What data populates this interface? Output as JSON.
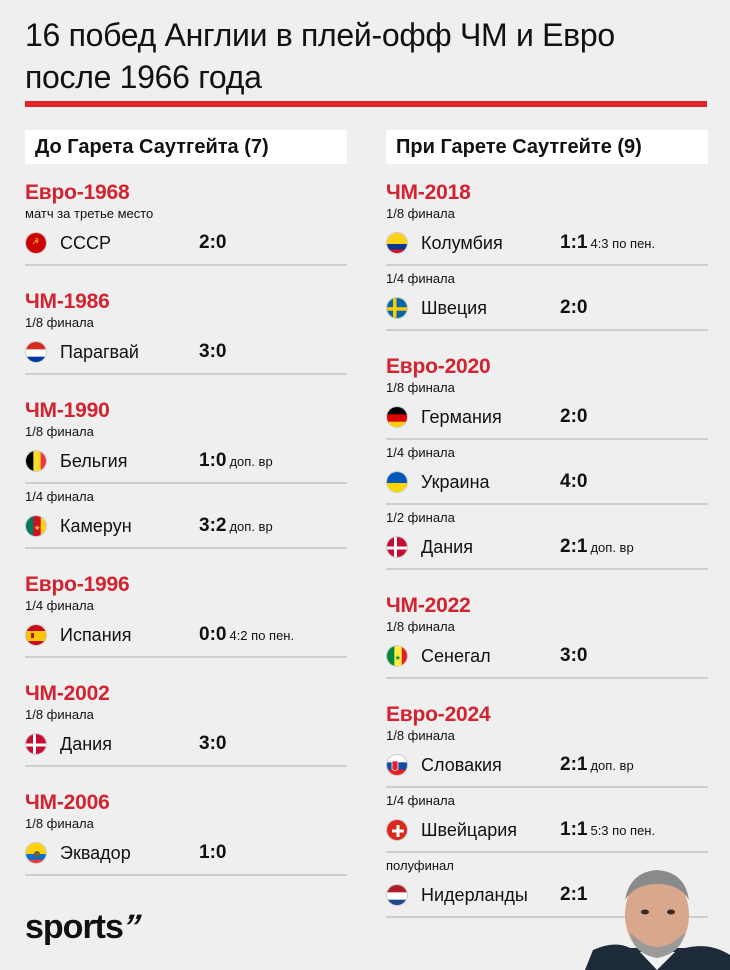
{
  "header": {
    "title_line1": "16 побед Англии в плей-офф ЧМ и Евро",
    "title_line2": "после 1966 года"
  },
  "left": {
    "heading": "До Гарета Саутгейта (7)",
    "tournaments": [
      {
        "name": "Евро-1968",
        "matches": [
          {
            "stage": "матч за третье место",
            "team": "СССР",
            "score": "2:0",
            "note": "",
            "flag": "ussr"
          }
        ]
      },
      {
        "name": "ЧМ-1986",
        "matches": [
          {
            "stage": "1/8 финала",
            "team": "Парагвай",
            "score": "3:0",
            "note": "",
            "flag": "paraguay"
          }
        ]
      },
      {
        "name": "ЧМ-1990",
        "matches": [
          {
            "stage": "1/8 финала",
            "team": "Бельгия",
            "score": "1:0",
            "note": "доп. вр",
            "flag": "belgium"
          },
          {
            "stage": "1/4 финала",
            "team": "Камерун",
            "score": "3:2",
            "note": "доп. вр",
            "flag": "cameroon"
          }
        ]
      },
      {
        "name": "Евро-1996",
        "matches": [
          {
            "stage": "1/4 финала",
            "team": "Испания",
            "score": "0:0",
            "note": "4:2 по пен.",
            "flag": "spain"
          }
        ]
      },
      {
        "name": "ЧМ-2002",
        "matches": [
          {
            "stage": "1/8 финала",
            "team": "Дания",
            "score": "3:0",
            "note": "",
            "flag": "denmark"
          }
        ]
      },
      {
        "name": "ЧМ-2006",
        "matches": [
          {
            "stage": "1/8 финала",
            "team": "Эквадор",
            "score": "1:0",
            "note": "",
            "flag": "ecuador"
          }
        ]
      }
    ]
  },
  "right": {
    "heading": "При Гарете Саутгейте (9)",
    "tournaments": [
      {
        "name": "ЧМ-2018",
        "matches": [
          {
            "stage": "1/8 финала",
            "team": "Колумбия",
            "score": "1:1",
            "note": "4:3 по пен.",
            "flag": "colombia"
          },
          {
            "stage": "1/4 финала",
            "team": "Швеция",
            "score": "2:0",
            "note": "",
            "flag": "sweden"
          }
        ]
      },
      {
        "name": "Евро-2020",
        "matches": [
          {
            "stage": "1/8 финала",
            "team": "Германия",
            "score": "2:0",
            "note": "",
            "flag": "germany"
          },
          {
            "stage": "1/4 финала",
            "team": "Украина",
            "score": "4:0",
            "note": "",
            "flag": "ukraine"
          },
          {
            "stage": "1/2 финала",
            "team": "Дания",
            "score": "2:1",
            "note": "доп. вр",
            "flag": "denmark"
          }
        ]
      },
      {
        "name": "ЧМ-2022",
        "matches": [
          {
            "stage": "1/8 финала",
            "team": "Сенегал",
            "score": "3:0",
            "note": "",
            "flag": "senegal"
          }
        ]
      },
      {
        "name": "Евро-2024",
        "matches": [
          {
            "stage": "1/8 финала",
            "team": "Словакия",
            "score": "2:1",
            "note": "доп. вр",
            "flag": "slovakia"
          },
          {
            "stage": "1/4 финала",
            "team": "Швейцария",
            "score": "1:1",
            "note": "5:3 по пен.",
            "flag": "switzerland"
          },
          {
            "stage": "полуфинал",
            "team": "Нидерланды",
            "score": "2:1",
            "note": "",
            "flag": "netherlands"
          }
        ]
      }
    ]
  },
  "footer": {
    "logo": "sports",
    "logo_mark": "’’"
  },
  "colors": {
    "accent": "#e3232d",
    "tournament": "#d42330",
    "background": "#efefef"
  }
}
